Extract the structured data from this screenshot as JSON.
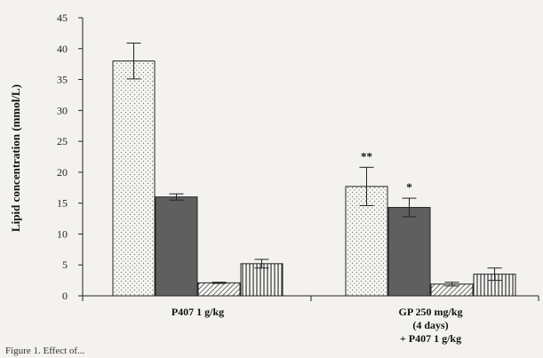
{
  "chart_data": {
    "type": "bar",
    "ylabel": "Lipid concentration (mmol/L)",
    "ylim": [
      0,
      45
    ],
    "yticks": [
      0,
      5,
      10,
      15,
      20,
      25,
      30,
      35,
      40,
      45
    ],
    "categories": [
      {
        "lines": [
          "P407 1 g/kg"
        ]
      },
      {
        "lines": [
          "GP 250 mg/kg",
          "(4 days)",
          "+ P407 1 g/kg"
        ]
      }
    ],
    "series": [
      {
        "pattern": "dots",
        "values": [
          38.0,
          17.7
        ],
        "errors": [
          2.9,
          3.1
        ]
      },
      {
        "pattern": "solid",
        "values": [
          16.0,
          14.3
        ],
        "errors": [
          0.5,
          1.5
        ]
      },
      {
        "pattern": "diagonal",
        "values": [
          2.1,
          1.9
        ],
        "errors": [
          0.1,
          0.3
        ]
      },
      {
        "pattern": "vertical",
        "values": [
          5.2,
          3.5
        ],
        "errors": [
          0.7,
          1.0
        ]
      }
    ],
    "annotations": [
      {
        "category": 1,
        "series": 0,
        "text": "**"
      },
      {
        "category": 1,
        "series": 1,
        "text": "*"
      }
    ],
    "colors": {
      "solid": "#5f5f5f",
      "stroke": "#222222",
      "background": "#f4f2ef"
    }
  },
  "caption": "Figure 1. Effect of..."
}
